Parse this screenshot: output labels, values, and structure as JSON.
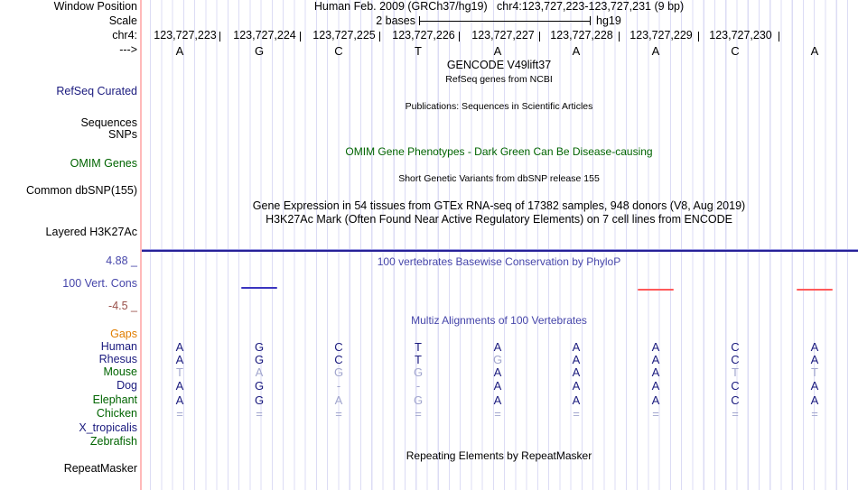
{
  "header": {
    "title": "Human Feb. 2009 (GRCh37/hg19)   chr4:123,727,223-123,727,231 (9 bp)"
  },
  "left_labels": {
    "window_position": "Window Position",
    "scale": "Scale",
    "chrom": "chr4:",
    "strand_arrow": "--->",
    "refseq_curated": "RefSeq Curated",
    "sequences": "Sequences",
    "snps": "SNPs",
    "omim_genes": "OMIM Genes",
    "common_dbsnp": "Common dbSNP(155)",
    "layered_h3k27ac": "Layered H3K27Ac",
    "cons_max": "4.88 _",
    "vert_cons": "100 Vert. Cons",
    "cons_min": "-4.5 _",
    "gaps": "Gaps",
    "repeatmasker": "RepeatMasker"
  },
  "center_texts": {
    "gencode": "GENCODE V49lift37",
    "refseq_note": "RefSeq genes from NCBI",
    "publications": "Publications: Sequences in Scientific Articles",
    "omim_title": "OMIM Gene Phenotypes - Dark Green Can Be Disease-causing",
    "dbsnp_note": "Short Genetic Variants from dbSNP release 155",
    "gtex": "Gene Expression in 54 tissues from GTEx RNA-seq of 17382 samples, 948 donors (V8, Aug 2019)",
    "h3k27ac": "H3K27Ac Mark (Often Found Near Active Regulatory Elements) on 7 cell lines from ENCODE",
    "repeat_title": "Repeating Elements by RepeatMasker"
  },
  "ruler": {
    "scale_label": "2 bases",
    "assembly": "hg19",
    "coordinates": [
      "123,727,223",
      "123,727,224",
      "123,727,225",
      "123,727,226",
      "123,727,227",
      "123,727,228",
      "123,727,229",
      "123,727,230"
    ],
    "sequence": [
      "A",
      "G",
      "C",
      "T",
      "A",
      "A",
      "A",
      "C",
      "A"
    ]
  },
  "conservation": {
    "title": "100 vertebrates Basewise Conservation by PhyloP",
    "segments": [
      {
        "column": 2,
        "color": "blue"
      },
      {
        "column": 7,
        "color": "red"
      },
      {
        "column": 9,
        "color": "red"
      }
    ],
    "colors": {
      "blue": "#3b35c0",
      "red": "#ff5a5a"
    }
  },
  "alignment": {
    "title": "Multiz Alignments of 100 Vertebrates",
    "rows": [
      {
        "species": "Human",
        "label_color": "navy",
        "letters": [
          "A",
          "G",
          "C",
          "T",
          "A",
          "A",
          "A",
          "C",
          "A"
        ],
        "dim": [
          0,
          0,
          0,
          0,
          0,
          0,
          0,
          0,
          0
        ]
      },
      {
        "species": "Rhesus",
        "label_color": "navy",
        "letters": [
          "A",
          "G",
          "C",
          "T",
          "G",
          "A",
          "A",
          "C",
          "A"
        ],
        "dim": [
          0,
          0,
          0,
          0,
          1,
          0,
          0,
          0,
          0
        ]
      },
      {
        "species": "Mouse",
        "label_color": "green",
        "letters": [
          "T",
          "A",
          "G",
          "G",
          "A",
          "A",
          "A",
          "T",
          "T"
        ],
        "dim": [
          1,
          1,
          1,
          1,
          0,
          0,
          0,
          1,
          1
        ]
      },
      {
        "species": "Dog",
        "label_color": "navy",
        "letters": [
          "A",
          "G",
          "-",
          "-",
          "A",
          "A",
          "A",
          "C",
          "A"
        ],
        "dim": [
          0,
          0,
          1,
          1,
          0,
          0,
          0,
          0,
          0
        ]
      },
      {
        "species": "Elephant",
        "label_color": "green",
        "letters": [
          "A",
          "G",
          "A",
          "G",
          "A",
          "A",
          "A",
          "C",
          "A"
        ],
        "dim": [
          0,
          0,
          1,
          1,
          0,
          0,
          0,
          0,
          0
        ]
      },
      {
        "species": "Chicken",
        "label_color": "green",
        "letters": [
          "=",
          "=",
          "=",
          "=",
          "=",
          "=",
          "=",
          "=",
          "="
        ],
        "dim": [
          1,
          1,
          1,
          1,
          1,
          1,
          1,
          1,
          1
        ]
      },
      {
        "species": "X_tropicalis",
        "label_color": "navy",
        "letters": [],
        "dim": []
      },
      {
        "species": "Zebrafish",
        "label_color": "green",
        "letters": [],
        "dim": []
      }
    ]
  }
}
